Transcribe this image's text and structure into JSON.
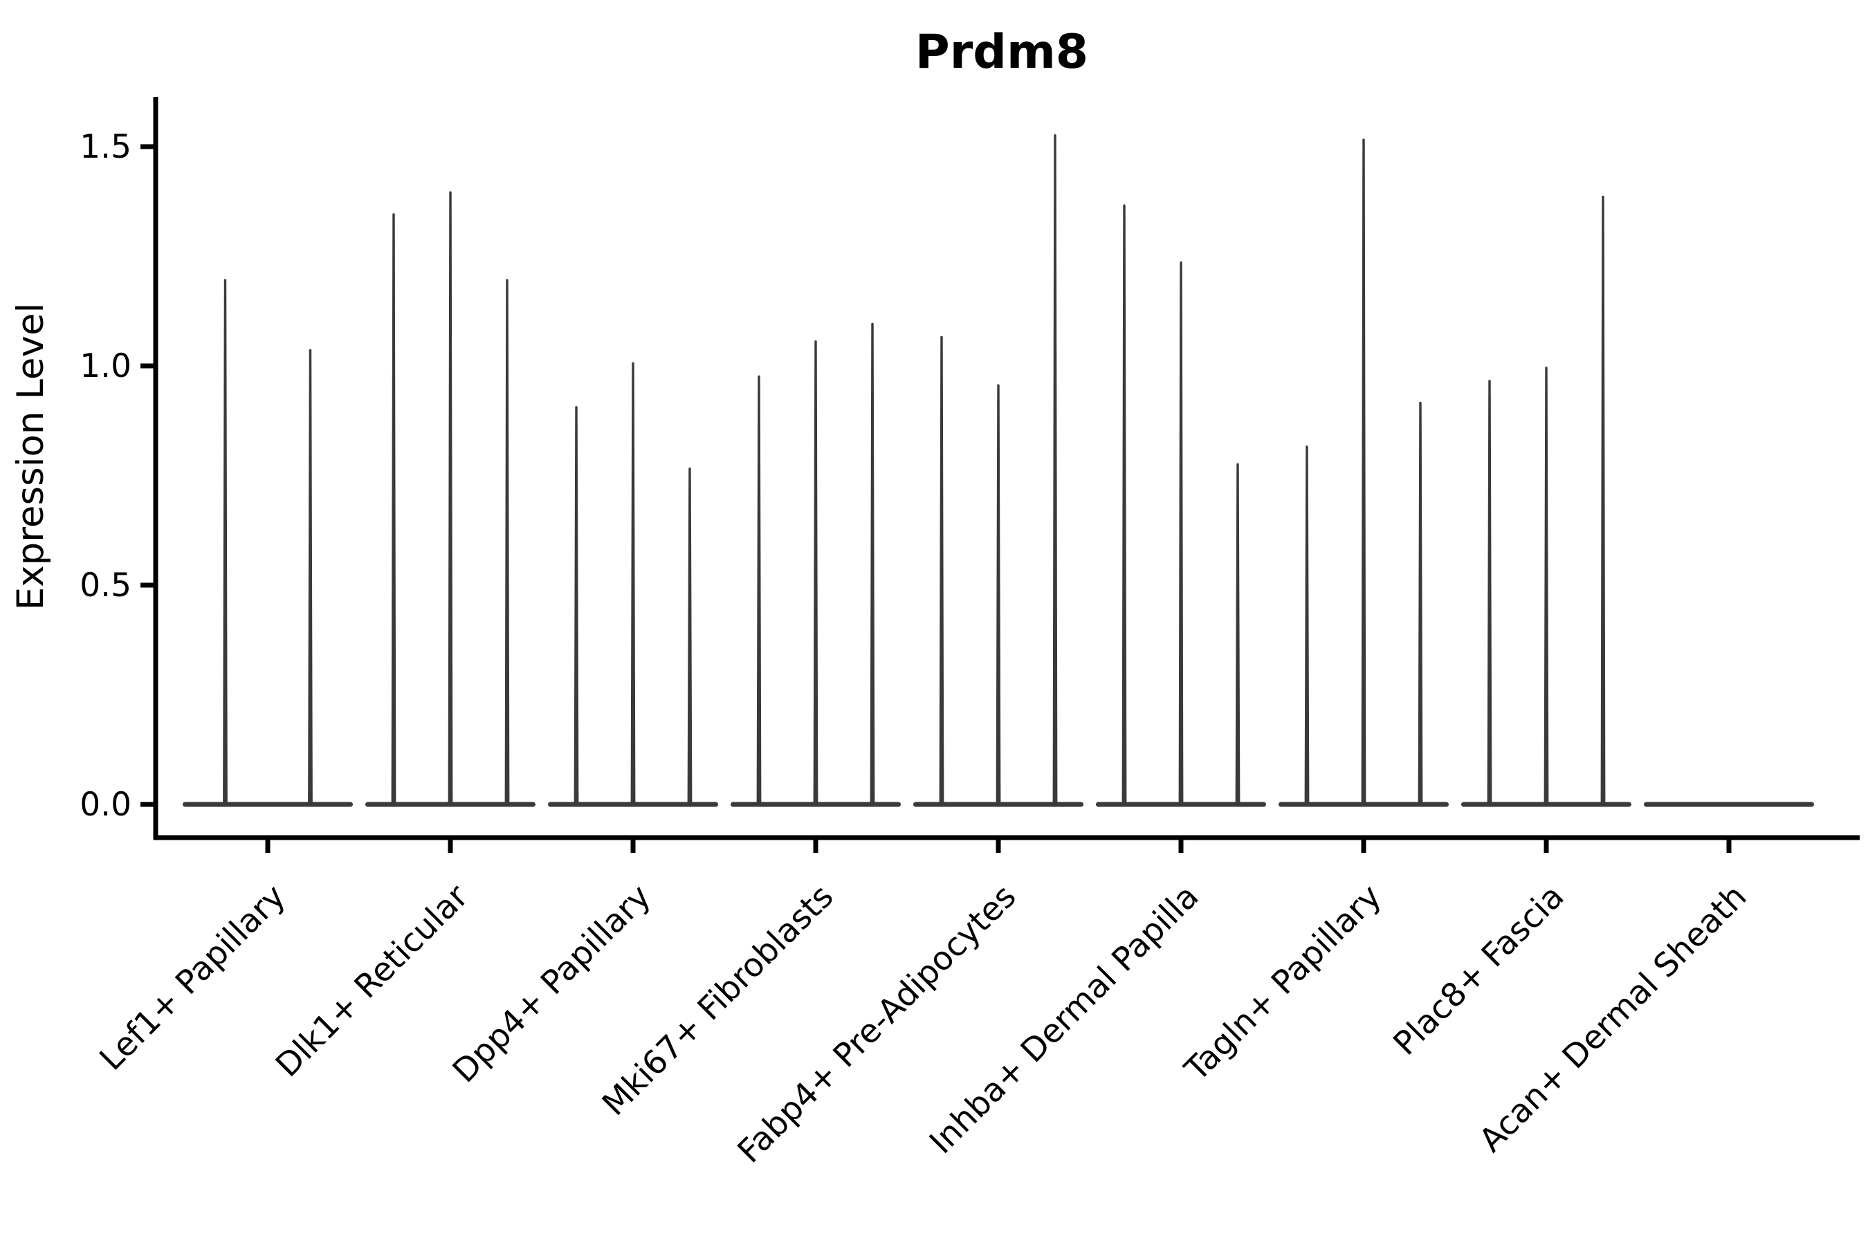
{
  "chart_data": {
    "type": "violin",
    "title": "Prdm8",
    "ylabel": "Expression Level",
    "xlabel": "",
    "yticks": [
      0.0,
      0.5,
      1.0,
      1.5
    ],
    "ytick_labels": [
      "0.0",
      "0.5",
      "1.0",
      "1.5"
    ],
    "ylim": [
      -0.075,
      1.62
    ],
    "grid": false,
    "legend": "none",
    "style": "needle-thin violins: density concentrated at 0 (flat base sliver) with a thin spike rising to each violin's maximum",
    "categories": [
      "Lef1+ Papillary",
      "Dlk1+ Reticular",
      "Dpp4+ Papillary",
      "Mki67+ Fibroblasts",
      "Fabp4+ Pre-Adipocytes",
      "Inhba+ Dermal Papilla",
      "Tagln+ Papillary",
      "Plac8+ Fascia",
      "Acan+ Dermal Sheath"
    ],
    "violins": [
      {
        "category": "Lef1+ Papillary",
        "tips": [
          1.2,
          1.04
        ]
      },
      {
        "category": "Dlk1+ Reticular",
        "tips": [
          1.35,
          1.4,
          1.2
        ]
      },
      {
        "category": "Dpp4+ Papillary",
        "tips": [
          0.91,
          1.01,
          0.77
        ]
      },
      {
        "category": "Mki67+ Fibroblasts",
        "tips": [
          0.98,
          1.06,
          1.1
        ]
      },
      {
        "category": "Fabp4+ Pre-Adipocytes",
        "tips": [
          1.07,
          0.96,
          1.53
        ]
      },
      {
        "category": "Inhba+ Dermal Papilla",
        "tips": [
          1.37,
          1.24,
          0.78
        ]
      },
      {
        "category": "Tagln+ Papillary",
        "tips": [
          0.82,
          1.52,
          0.92
        ]
      },
      {
        "category": "Plac8+ Fascia",
        "tips": [
          0.97,
          1.0,
          1.39
        ]
      },
      {
        "category": "Acan+ Dermal Sheath",
        "tips": [
          0.0,
          0.0,
          0.0
        ]
      }
    ],
    "colors": {
      "violin": "#3a3a3a",
      "axis": "#000000",
      "text": "#000000",
      "background": "#ffffff"
    }
  }
}
